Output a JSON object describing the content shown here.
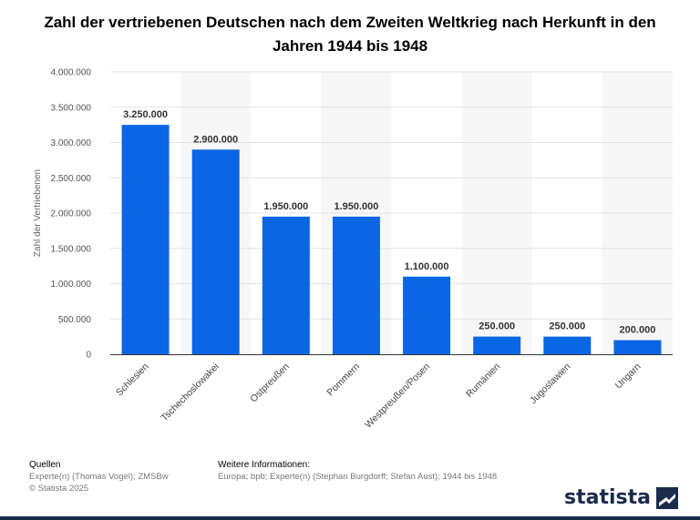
{
  "chart_data": {
    "type": "bar",
    "title": "Zahl der vertriebenen Deutschen nach dem Zweiten Weltkrieg nach Herkunft in den Jahren 1944 bis 1948",
    "ylabel": "Zahl der Vertriebenen",
    "xlabel": "",
    "categories": [
      "Schlesien",
      "Tschechoslowakei",
      "Ostpreußen",
      "Pommern",
      "Westpreußen/Posen",
      "Rumänien",
      "Jugoslawien",
      "Ungarn"
    ],
    "values": [
      3250000,
      2900000,
      1950000,
      1950000,
      1100000,
      250000,
      250000,
      200000
    ],
    "value_labels": [
      "3.250.000",
      "2.900.000",
      "1.950.000",
      "1.950.000",
      "1.100.000",
      "250.000",
      "250.000",
      "200.000"
    ],
    "ylim": [
      0,
      4000000
    ],
    "yticks": [
      0,
      500000,
      1000000,
      1500000,
      2000000,
      2500000,
      3000000,
      3500000,
      4000000
    ],
    "ytick_labels": [
      "0",
      "500.000",
      "1.000.000",
      "1.500.000",
      "2.000.000",
      "2.500.000",
      "3.000.000",
      "3.500.000",
      "4.000.000"
    ],
    "bar_color": "#0b66e4",
    "grid": true,
    "legend": "none"
  },
  "footer": {
    "sources_heading": "Quellen",
    "sources_line1": "Experte(n) (Thomas Vogel); ZMSBw",
    "sources_line2": "© Statista 2025",
    "info_heading": "Weitere Informationen:",
    "info_text": "Europa; bpb; Experte(n) (Stephan Burgdorff; Stefan Aust); 1944 bis 1948"
  },
  "brand": {
    "name": "statista",
    "color": "#1a2b4c"
  }
}
